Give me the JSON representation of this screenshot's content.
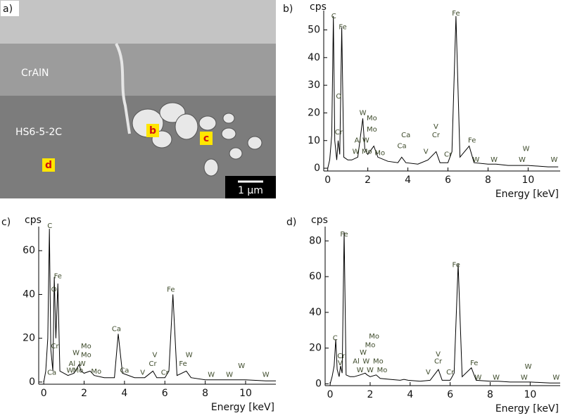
{
  "image_panel": {
    "label": "a)",
    "layers": [
      "CrAlN",
      "HS6-5-2C"
    ],
    "markers": [
      "b",
      "c",
      "d"
    ],
    "scale_bar": "1 µm"
  },
  "chart_data": [
    {
      "type": "line",
      "panel_label": "b)",
      "ylabel": "cps",
      "xlabel": "Energy [keV]",
      "color": "#000000",
      "x": [
        0,
        0.1,
        0.2,
        0.28,
        0.35,
        0.45,
        0.52,
        0.6,
        0.7,
        0.8,
        1.0,
        1.2,
        1.5,
        1.75,
        1.85,
        2.0,
        2.3,
        2.5,
        3.0,
        3.5,
        3.69,
        3.9,
        4.5,
        5.0,
        5.41,
        5.6,
        6.0,
        6.2,
        6.4,
        6.6,
        7.06,
        7.3,
        8.0,
        8.4,
        9.0,
        10.0,
        11.0,
        11.5
      ],
      "values": [
        0,
        3,
        12,
        55,
        10,
        3,
        10,
        5,
        51,
        4,
        3,
        3,
        4,
        18,
        7,
        5,
        8,
        4,
        2.5,
        2,
        4,
        2,
        1.5,
        3,
        6,
        2,
        2,
        6,
        55,
        4,
        8,
        2,
        1.5,
        1.5,
        1,
        1,
        0.5,
        0.5
      ],
      "xlim": [
        -0.2,
        11.6
      ],
      "ylim": [
        -1,
        57
      ],
      "xticks": [
        0,
        2,
        4,
        6,
        8,
        10
      ],
      "yticks": [
        0,
        10,
        20,
        30,
        40,
        50
      ],
      "annotations": [
        "C",
        "Fe",
        "O",
        "Cr",
        "W",
        "Mo",
        "Mo",
        "Al",
        "W",
        "W",
        "Mo",
        "Mo",
        "Ca",
        "Ca",
        "V",
        "V",
        "Cr",
        "Cr",
        "Fe",
        "Fe",
        "W",
        "W",
        "W",
        "W",
        "W"
      ]
    },
    {
      "type": "line",
      "panel_label": "c)",
      "ylabel": "cps",
      "xlabel": "Energy [keV]",
      "color": "#000000",
      "x": [
        0,
        0.1,
        0.2,
        0.28,
        0.35,
        0.45,
        0.52,
        0.6,
        0.7,
        0.8,
        1.0,
        1.2,
        1.5,
        1.75,
        1.85,
        2.0,
        2.3,
        2.5,
        3.0,
        3.5,
        3.69,
        3.9,
        4.5,
        5.0,
        5.41,
        5.6,
        6.0,
        6.2,
        6.4,
        6.6,
        7.06,
        7.3,
        8.0,
        8.4,
        9.0,
        10.0,
        11.0,
        11.5
      ],
      "values": [
        0,
        5,
        20,
        70,
        15,
        5,
        48,
        20,
        45,
        5,
        4,
        3,
        4,
        8,
        5,
        4,
        5,
        3,
        2,
        2,
        22,
        4,
        2,
        2,
        5,
        2,
        2,
        5,
        40,
        3,
        5,
        2,
        1,
        1,
        1,
        1,
        0.5,
        0.5
      ],
      "xlim": [
        -0.25,
        11.5
      ],
      "ylim": [
        -1,
        71
      ],
      "xticks": [
        0,
        2,
        4,
        6,
        8,
        10
      ],
      "yticks": [
        0,
        20,
        40,
        60
      ],
      "annotations": [
        "C",
        "Fe",
        "O",
        "Cr",
        "Ca",
        "Mo",
        "W",
        "Mo",
        "Al",
        "W",
        "W",
        "Mo",
        "Mo",
        "Ca",
        "Ca",
        "V",
        "V",
        "Cr",
        "Cr",
        "Fe",
        "Fe",
        "W",
        "W",
        "W",
        "W",
        "W"
      ]
    },
    {
      "type": "line",
      "panel_label": "d)",
      "ylabel": "cps",
      "xlabel": "Energy [keV]",
      "color": "#000000",
      "x": [
        0,
        0.1,
        0.2,
        0.28,
        0.35,
        0.45,
        0.52,
        0.6,
        0.7,
        0.8,
        1.0,
        1.2,
        1.5,
        1.75,
        1.85,
        2.0,
        2.3,
        2.5,
        3.0,
        3.5,
        3.69,
        3.9,
        4.5,
        5.0,
        5.41,
        5.6,
        6.0,
        6.2,
        6.4,
        6.6,
        7.06,
        7.3,
        8.0,
        8.4,
        9.0,
        10.0,
        11.0,
        11.5
      ],
      "values": [
        0,
        4,
        10,
        25,
        8,
        4,
        10,
        6,
        85,
        5,
        4,
        4,
        5,
        6,
        5,
        4,
        5,
        3,
        2.5,
        2,
        2.5,
        2,
        1.5,
        2,
        8,
        2,
        2,
        6,
        67,
        4,
        9,
        2,
        1.5,
        1.5,
        1,
        1,
        0.5,
        0.5
      ],
      "xlim": [
        -0.25,
        11.5
      ],
      "ylim": [
        -1,
        88
      ],
      "xticks": [
        0,
        2,
        4,
        6,
        8,
        10
      ],
      "yticks": [
        0,
        20,
        40,
        60,
        80
      ],
      "annotations": [
        "C",
        "Fe",
        "Cr",
        "V",
        "Mo",
        "Mo",
        "W",
        "Al",
        "W",
        "Mo",
        "W",
        "W",
        "Mo",
        "V",
        "V",
        "Cr",
        "Cr",
        "Fe",
        "Fe",
        "W",
        "W",
        "W",
        "W",
        "W"
      ]
    }
  ]
}
